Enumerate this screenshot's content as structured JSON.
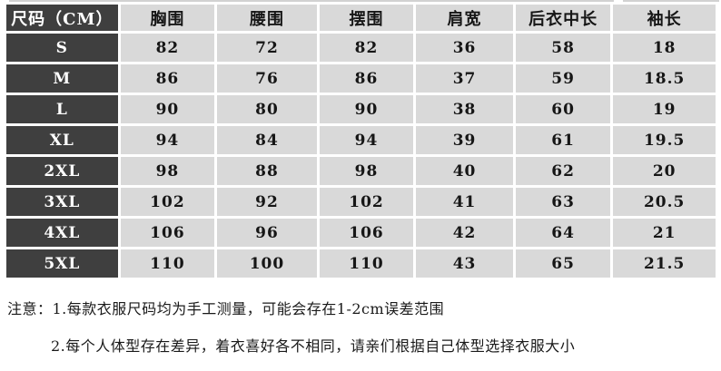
{
  "chart_data": {
    "type": "table",
    "title": "",
    "columns": [
      "尺码（CM）",
      "胸围",
      "腰围",
      "摆围",
      "肩宽",
      "后衣中长",
      "袖长"
    ],
    "rows": [
      [
        "S",
        82,
        72,
        82,
        36,
        58,
        18
      ],
      [
        "M",
        86,
        76,
        86,
        37,
        59,
        18.5
      ],
      [
        "L",
        90,
        80,
        90,
        38,
        60,
        19
      ],
      [
        "XL",
        94,
        84,
        94,
        39,
        61,
        19.5
      ],
      [
        "2XL",
        98,
        88,
        98,
        40,
        62,
        20
      ],
      [
        "3XL",
        102,
        92,
        102,
        41,
        63,
        20.5
      ],
      [
        "4XL",
        106,
        96,
        106,
        42,
        64,
        21
      ],
      [
        "5XL",
        110,
        100,
        110,
        43,
        65,
        21.5
      ]
    ],
    "layout": {
      "size_column_position": "left",
      "grid": "white-separators"
    }
  },
  "notes": {
    "line1": "注意：1.每款衣服尺码均为手工测量，可能会存在1-2cm误差范围",
    "line2": "2.每个人体型存在差异，着衣喜好各不相同，请亲们根据自己体型选择衣服大小"
  },
  "colors": {
    "size_column_bg": "#3f3f3f",
    "size_column_text": "#ffffff",
    "cell_bg": "#d9d9d9",
    "cell_text": "#161616",
    "grid": "#ffffff",
    "page_bg": "#ffffff"
  }
}
